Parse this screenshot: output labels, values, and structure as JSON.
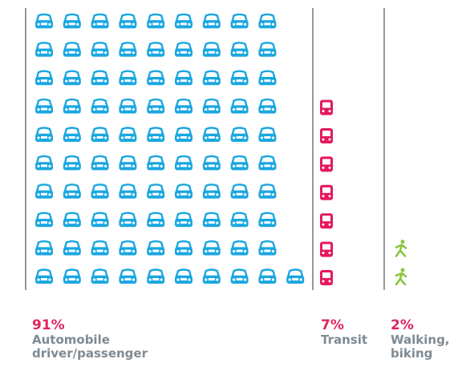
{
  "chart_data": {
    "type": "pictogram",
    "categories": [
      [
        "Automobile",
        "driver/passenger"
      ],
      [
        "Transit"
      ],
      [
        "Walking,",
        "biking"
      ]
    ],
    "values": [
      91,
      7,
      2
    ],
    "value_labels": [
      "91%",
      "7%",
      "2%"
    ],
    "colors": [
      "#1aa7e0",
      "#e5185d",
      "#8cc63f"
    ]
  }
}
